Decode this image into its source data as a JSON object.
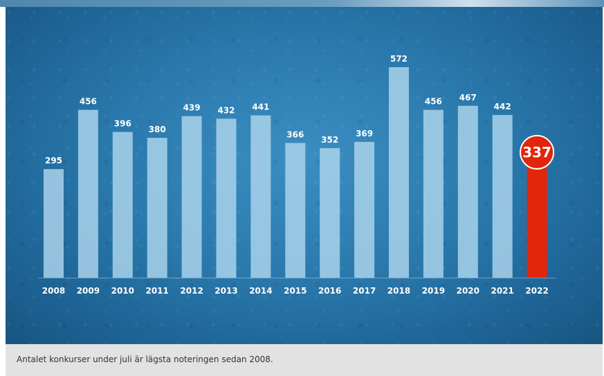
{
  "chart_data": {
    "type": "bar",
    "categories": [
      "2008",
      "2009",
      "2010",
      "2011",
      "2012",
      "2013",
      "2014",
      "2015",
      "2016",
      "2017",
      "2018",
      "2019",
      "2020",
      "2021",
      "2022"
    ],
    "values": [
      295,
      456,
      396,
      380,
      439,
      432,
      441,
      366,
      352,
      369,
      572,
      456,
      467,
      442,
      337
    ],
    "highlight_category": "2022",
    "colors": {
      "bar": "#a9d2ea",
      "highlight": "#e2260b",
      "text": "#ffffff",
      "background": "#2a79ad"
    },
    "ylim": [
      0,
      620
    ]
  },
  "caption": "Antalet konkurser under juli är lägsta noteringen sedan 2008."
}
